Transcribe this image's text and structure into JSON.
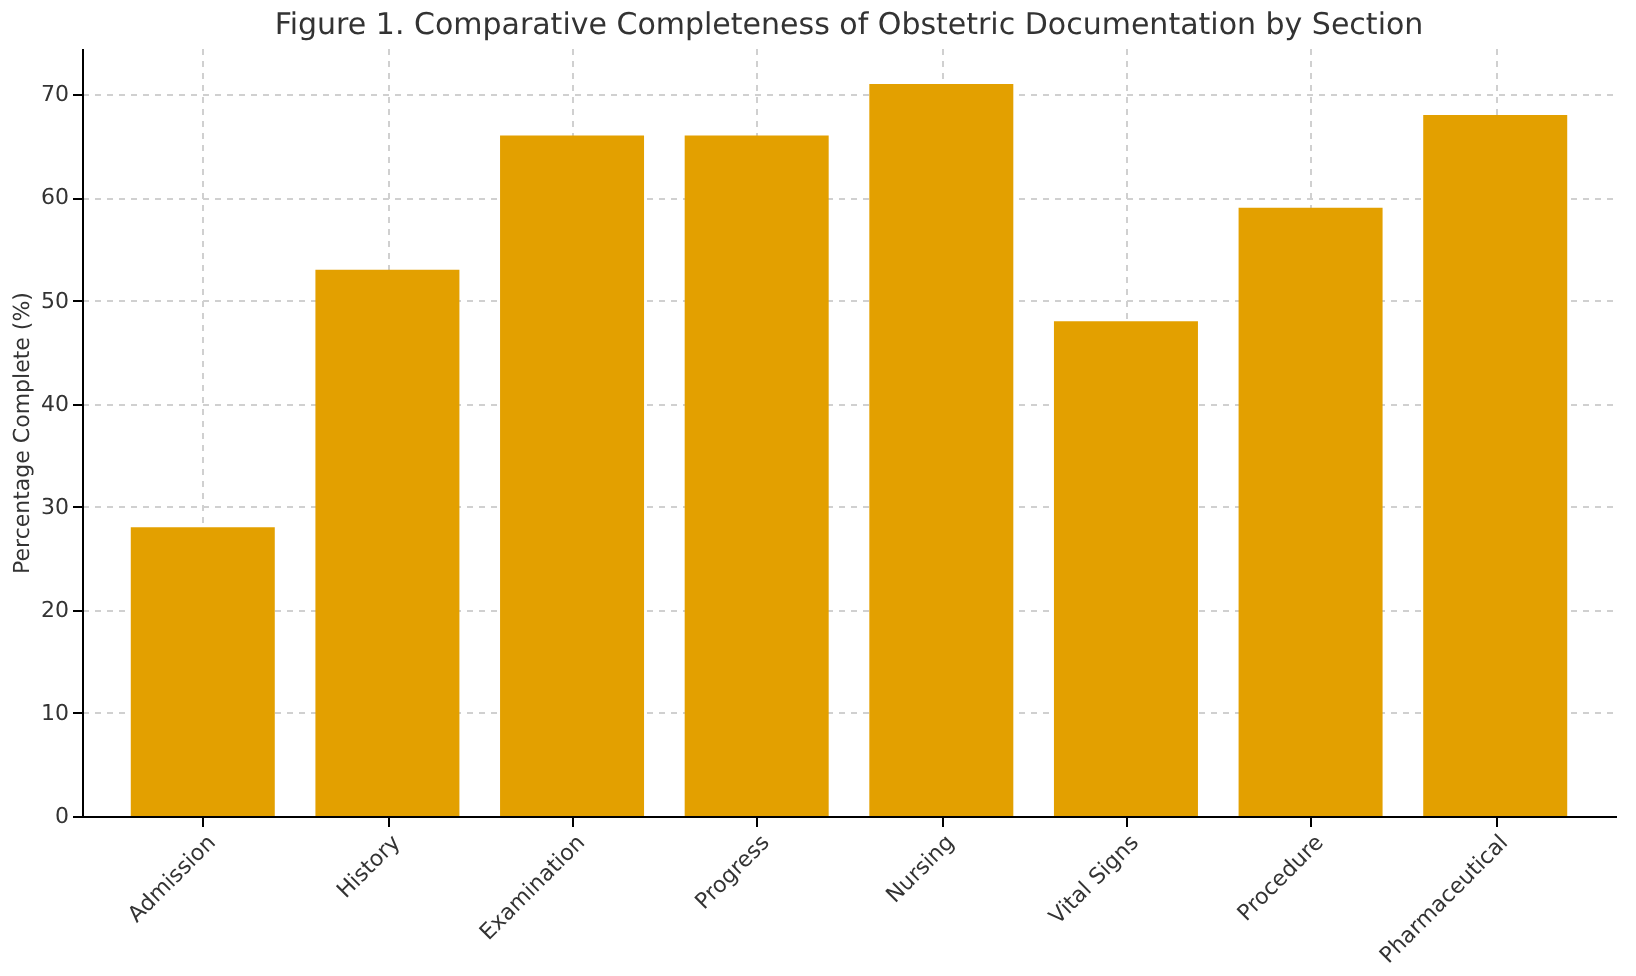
{
  "chart_data": {
    "type": "bar",
    "title": "Figure 1. Comparative Completeness of Obstetric Documentation by Section",
    "ylabel": "Percentage Complete (%)",
    "categories": [
      "Admission",
      "History",
      "Examination",
      "Progress",
      "Nursing",
      "Vital Signs",
      "Procedure",
      "Pharmaceutical"
    ],
    "values": [
      28,
      53,
      66,
      66,
      71,
      48,
      59,
      68
    ],
    "color": "#e3a000",
    "ylim": [
      0,
      74.5
    ],
    "yticks": [
      0,
      10,
      20,
      30,
      40,
      50,
      60,
      70
    ],
    "grid": true
  }
}
